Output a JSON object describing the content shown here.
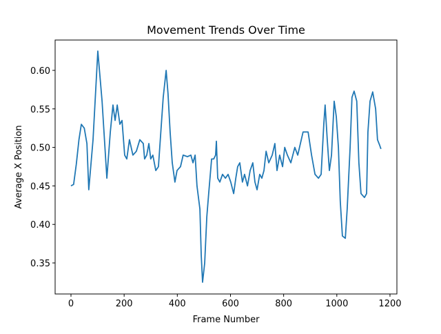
{
  "chart_data": {
    "type": "line",
    "title": "Movement Trends Over Time",
    "xlabel": "Frame Number",
    "ylabel": "Average X Position",
    "color": "#1f77b4",
    "x": [
      0,
      10,
      20,
      30,
      39,
      50,
      60,
      67,
      83,
      101,
      117,
      135,
      148,
      158,
      166,
      174,
      184,
      192,
      202,
      210,
      220,
      233,
      246,
      259,
      272,
      277,
      285,
      293,
      300,
      308,
      319,
      329,
      340,
      347,
      358,
      365,
      373,
      381,
      391,
      399,
      412,
      422,
      438,
      451,
      459,
      467,
      474,
      485,
      490,
      495,
      503,
      511,
      518,
      529,
      537,
      544,
      547,
      552,
      560,
      570,
      581,
      591,
      601,
      612,
      620,
      627,
      635,
      645,
      653,
      664,
      674,
      684,
      692,
      700,
      710,
      718,
      726,
      734,
      744,
      757,
      767,
      775,
      785,
      796,
      804,
      814,
      827,
      842,
      853,
      873,
      892,
      905,
      918,
      931,
      941,
      951,
      956,
      964,
      972,
      980,
      990,
      998,
      1006,
      1013,
      1021,
      1032,
      1039,
      1050,
      1057,
      1065,
      1075,
      1083,
      1091,
      1104,
      1112,
      1117,
      1125,
      1135,
      1146,
      1153,
      1161,
      1166
    ],
    "values": [
      0.45,
      0.452,
      0.478,
      0.51,
      0.53,
      0.525,
      0.505,
      0.445,
      0.51,
      0.625,
      0.56,
      0.46,
      0.52,
      0.555,
      0.535,
      0.555,
      0.53,
      0.535,
      0.49,
      0.485,
      0.51,
      0.49,
      0.495,
      0.51,
      0.505,
      0.485,
      0.49,
      0.505,
      0.485,
      0.49,
      0.47,
      0.475,
      0.53,
      0.565,
      0.6,
      0.57,
      0.52,
      0.48,
      0.455,
      0.47,
      0.475,
      0.49,
      0.488,
      0.49,
      0.48,
      0.49,
      0.45,
      0.42,
      0.36,
      0.325,
      0.35,
      0.41,
      0.44,
      0.485,
      0.485,
      0.49,
      0.508,
      0.46,
      0.455,
      0.465,
      0.46,
      0.465,
      0.455,
      0.44,
      0.46,
      0.475,
      0.48,
      0.455,
      0.465,
      0.45,
      0.47,
      0.48,
      0.455,
      0.445,
      0.465,
      0.46,
      0.47,
      0.495,
      0.48,
      0.49,
      0.505,
      0.47,
      0.49,
      0.475,
      0.5,
      0.49,
      0.48,
      0.5,
      0.49,
      0.52,
      0.52,
      0.49,
      0.465,
      0.46,
      0.465,
      0.53,
      0.555,
      0.51,
      0.47,
      0.49,
      0.56,
      0.54,
      0.5,
      0.43,
      0.385,
      0.382,
      0.42,
      0.5,
      0.565,
      0.573,
      0.56,
      0.48,
      0.44,
      0.435,
      0.44,
      0.52,
      0.56,
      0.572,
      0.55,
      0.51,
      0.503,
      0.498
    ],
    "xlim": [
      -59.6,
      1226
    ],
    "ylim": [
      0.3097,
      0.6394
    ],
    "xticks": [
      0,
      200,
      400,
      600,
      800,
      1000,
      1200
    ],
    "yticks": [
      {
        "value": 0.35,
        "label": "0.35"
      },
      {
        "value": 0.4,
        "label": "0.40"
      },
      {
        "value": 0.45,
        "label": "0.45"
      },
      {
        "value": 0.5,
        "label": "0.50"
      },
      {
        "value": 0.55,
        "label": "0.55"
      },
      {
        "value": 0.6,
        "label": "0.60"
      }
    ]
  }
}
